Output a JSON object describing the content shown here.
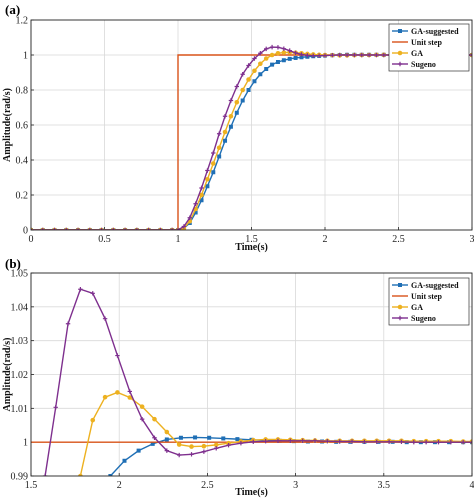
{
  "chart_data": [
    {
      "panel_label": "(a)",
      "type": "line",
      "xlabel": "Time(s)",
      "ylabel": "Amplitude(rad/s)",
      "xlim": [
        0,
        3
      ],
      "ylim": [
        0,
        1.2
      ],
      "xticks": [
        "0",
        "0.5",
        "1",
        "1.5",
        "2",
        "2.5",
        "3"
      ],
      "yticks": [
        "0",
        "0.2",
        "0.4",
        "0.6",
        "0.8",
        "1",
        "1.2"
      ],
      "grid": true,
      "legend_position": "top-right",
      "legend": [
        "GA-suggested",
        "Unit step",
        "GA",
        "Sugeno"
      ],
      "series": [
        {
          "name": "GA-suggested",
          "color": "#1f6fb5",
          "marker": "square",
          "x": [
            0,
            0.08,
            0.16,
            0.24,
            0.32,
            0.4,
            0.48,
            0.56,
            0.64,
            0.72,
            0.8,
            0.88,
            0.96,
            1.0,
            1.04,
            1.08,
            1.12,
            1.16,
            1.2,
            1.24,
            1.28,
            1.32,
            1.36,
            1.4,
            1.44,
            1.48,
            1.52,
            1.56,
            1.6,
            1.64,
            1.68,
            1.72,
            1.76,
            1.8,
            1.84,
            1.88,
            1.92,
            1.96,
            2.0,
            2.05,
            2.1,
            2.15,
            2.2,
            2.25,
            2.3,
            2.35,
            2.4,
            2.45,
            2.5,
            2.55,
            2.6,
            2.65,
            2.7,
            2.75,
            2.8,
            2.85,
            2.9,
            2.95,
            3.0
          ],
          "y": [
            0,
            0,
            0,
            0,
            0,
            0,
            0,
            0,
            0,
            0,
            0,
            0,
            0,
            0,
            0.01,
            0.04,
            0.1,
            0.17,
            0.25,
            0.33,
            0.42,
            0.51,
            0.59,
            0.67,
            0.74,
            0.8,
            0.85,
            0.89,
            0.92,
            0.945,
            0.96,
            0.97,
            0.978,
            0.983,
            0.987,
            0.99,
            0.993,
            0.995,
            0.997,
            0.999,
            1.0,
            1.001,
            1.001,
            1.001,
            1.001,
            1.001,
            1.001,
            1.0,
            1.0,
            1.0,
            1.0,
            1.0,
            1.0,
            1.0,
            1.0,
            1.0,
            1.0,
            1.0,
            1.0
          ]
        },
        {
          "name": "Unit step",
          "color": "#d95319",
          "marker": "none",
          "x": [
            0,
            1,
            1,
            3
          ],
          "y": [
            0,
            0,
            1,
            1
          ]
        },
        {
          "name": "GA",
          "color": "#edb120",
          "marker": "circle",
          "x": [
            0,
            0.08,
            0.16,
            0.24,
            0.32,
            0.4,
            0.48,
            0.56,
            0.64,
            0.72,
            0.8,
            0.88,
            0.96,
            1.0,
            1.04,
            1.08,
            1.12,
            1.16,
            1.2,
            1.24,
            1.28,
            1.32,
            1.36,
            1.4,
            1.44,
            1.48,
            1.52,
            1.56,
            1.6,
            1.64,
            1.68,
            1.72,
            1.76,
            1.8,
            1.84,
            1.88,
            1.92,
            1.96,
            2.0,
            2.05,
            2.1,
            2.15,
            2.2,
            2.25,
            2.3,
            2.35,
            2.4,
            2.45,
            2.5,
            2.55,
            2.6,
            2.65,
            2.7,
            2.75,
            2.8,
            2.85,
            2.9,
            2.95,
            3.0
          ],
          "y": [
            0,
            0,
            0,
            0,
            0,
            0,
            0,
            0,
            0,
            0,
            0,
            0,
            0,
            0,
            0.01,
            0.05,
            0.12,
            0.2,
            0.29,
            0.38,
            0.47,
            0.56,
            0.65,
            0.73,
            0.8,
            0.86,
            0.91,
            0.95,
            0.98,
            1.0,
            1.01,
            1.014,
            1.015,
            1.013,
            1.01,
            1.006,
            1.003,
            1.001,
            1.0,
            0.999,
            0.998,
            0.998,
            0.999,
            1.0,
            1.0,
            1.001,
            1.001,
            1.0,
            1.0,
            1.0,
            1.0,
            1.0,
            1.0,
            1.0,
            1.0,
            1.0,
            1.0,
            1.0,
            1.0
          ]
        },
        {
          "name": "Sugeno",
          "color": "#7e2f8e",
          "marker": "plus",
          "x": [
            0,
            0.08,
            0.16,
            0.24,
            0.32,
            0.4,
            0.48,
            0.56,
            0.64,
            0.72,
            0.8,
            0.88,
            0.96,
            1.0,
            1.04,
            1.08,
            1.12,
            1.16,
            1.2,
            1.24,
            1.28,
            1.32,
            1.36,
            1.4,
            1.44,
            1.48,
            1.52,
            1.56,
            1.6,
            1.64,
            1.68,
            1.72,
            1.76,
            1.8,
            1.84,
            1.88,
            1.92,
            1.96,
            2.0,
            2.05,
            2.1,
            2.15,
            2.2,
            2.25,
            2.3,
            2.35,
            2.4,
            2.45,
            2.5,
            2.55,
            2.6,
            2.65,
            2.7,
            2.75,
            2.8,
            2.85,
            2.9,
            2.95,
            3.0
          ],
          "y": [
            0,
            0,
            0,
            0,
            0,
            0,
            0,
            0,
            0,
            0,
            0,
            0,
            0,
            0,
            0.02,
            0.07,
            0.15,
            0.24,
            0.34,
            0.44,
            0.55,
            0.65,
            0.74,
            0.82,
            0.89,
            0.94,
            0.98,
            1.01,
            1.035,
            1.045,
            1.044,
            1.036,
            1.025,
            1.012,
            1.003,
            0.998,
            0.996,
            0.996,
            0.997,
            0.999,
            1.0,
            1.0,
            1.0,
            1.0,
            1.0,
            1.0,
            1.0,
            1.0,
            1.0,
            1.0,
            1.0,
            1.0,
            1.0,
            1.0,
            1.0,
            1.0,
            1.0,
            1.0,
            1.0
          ]
        }
      ]
    },
    {
      "panel_label": "(b)",
      "type": "line",
      "xlabel": "Time(s)",
      "ylabel": "Amplitude(rad/s)",
      "xlim": [
        1.5,
        4
      ],
      "ylim": [
        0.99,
        1.05
      ],
      "xticks": [
        "1.5",
        "2",
        "2.5",
        "3",
        "3.5",
        "4"
      ],
      "yticks": [
        "0.99",
        "1",
        "1.01",
        "1.02",
        "1.03",
        "1.04",
        "1.05"
      ],
      "grid": true,
      "legend_position": "top-right",
      "legend": [
        "GA-suggested",
        "Unit step",
        "GA",
        "Sugeno"
      ],
      "series": [
        {
          "name": "GA-suggested",
          "color": "#1f6fb5",
          "marker": "square",
          "x": [
            1.95,
            2.03,
            2.11,
            2.19,
            2.27,
            2.35,
            2.43,
            2.51,
            2.59,
            2.67,
            2.75,
            2.83,
            2.91,
            2.99,
            3.07,
            3.15,
            3.23,
            3.31,
            3.39,
            3.47,
            3.55,
            3.63,
            3.71,
            3.79,
            3.87,
            3.95,
            4.0
          ],
          "y": [
            0.99,
            0.9945,
            0.9975,
            0.9995,
            1.0008,
            1.0013,
            1.0014,
            1.0013,
            1.0011,
            1.0009,
            1.0007,
            1.0005,
            1.0004,
            1.0003,
            1.0002,
            1.0002,
            1.0001,
            1.0001,
            1.0001,
            1.0001,
            1.0001,
            1.0,
            1.0,
            1.0,
            1.0,
            1.0,
            1.0
          ]
        },
        {
          "name": "Unit step",
          "color": "#d95319",
          "marker": "none",
          "x": [
            1.5,
            4
          ],
          "y": [
            1,
            1
          ]
        },
        {
          "name": "GA",
          "color": "#edb120",
          "marker": "circle",
          "x": [
            1.78,
            1.85,
            1.92,
            1.99,
            2.06,
            2.13,
            2.2,
            2.27,
            2.34,
            2.41,
            2.48,
            2.55,
            2.62,
            2.69,
            2.76,
            2.83,
            2.9,
            2.97,
            3.04,
            3.11,
            3.18,
            3.25,
            3.32,
            3.39,
            3.46,
            3.53,
            3.6,
            3.67,
            3.74,
            3.81,
            3.88,
            3.95,
            4.0
          ],
          "y": [
            0.99,
            1.0065,
            1.0133,
            1.0147,
            1.0132,
            1.0105,
            1.0068,
            1.003,
            0.9993,
            0.9987,
            0.9988,
            0.9992,
            0.9997,
            1.0002,
            1.0006,
            1.0008,
            1.0008,
            1.0007,
            1.0006,
            1.0005,
            1.0004,
            1.0004,
            1.0004,
            1.0004,
            1.0004,
            1.0004,
            1.0004,
            1.0003,
            1.0003,
            1.0003,
            1.0003,
            1.0002,
            1.0002
          ]
        },
        {
          "name": "Sugeno",
          "color": "#7e2f8e",
          "marker": "plus",
          "x": [
            1.58,
            1.64,
            1.71,
            1.78,
            1.85,
            1.92,
            1.99,
            2.06,
            2.13,
            2.2,
            2.27,
            2.34,
            2.41,
            2.48,
            2.55,
            2.62,
            2.69,
            2.76,
            2.83,
            2.9,
            2.97,
            3.04,
            3.11,
            3.18,
            3.25,
            3.32,
            3.39,
            3.46,
            3.53,
            3.6,
            3.67,
            3.74,
            3.81,
            3.88,
            3.95,
            4.0
          ],
          "y": [
            0.99,
            1.0103,
            1.035,
            1.0452,
            1.044,
            1.0365,
            1.0256,
            1.015,
            1.0068,
            1.0013,
            0.9975,
            0.9962,
            0.9964,
            0.9972,
            0.9982,
            0.9991,
            0.9997,
            1.0001,
            1.0003,
            1.0004,
            1.0004,
            1.0004,
            1.0004,
            1.0003,
            1.0002,
            1.0002,
            1.0001,
            1.0001,
            1.0001,
            1.0001,
            1.0,
            1.0,
            1.0,
            1.0,
            1.0,
            1.0
          ]
        }
      ]
    }
  ]
}
